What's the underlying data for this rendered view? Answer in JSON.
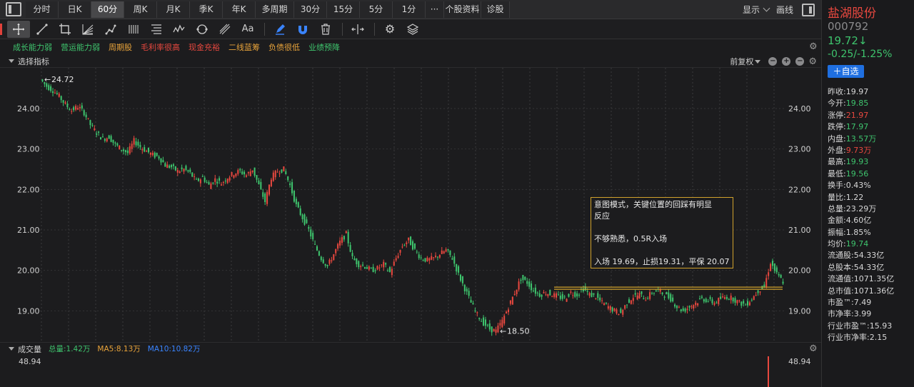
{
  "period_bar": {
    "tabs": [
      "分时",
      "日K",
      "60分",
      "周K",
      "月K",
      "季K",
      "年K",
      "多周期",
      "30分",
      "15分",
      "5分",
      "1分",
      "···",
      "个股资料",
      "诊股"
    ],
    "active_index": 2,
    "display_label": "显示",
    "draw_label": "画线"
  },
  "tags": [
    {
      "label": "成长能力弱",
      "color": "#3ec46d"
    },
    {
      "label": "营运能力弱",
      "color": "#3ec46d"
    },
    {
      "label": "周期股",
      "color": "#e8a33a"
    },
    {
      "label": "毛利率很高",
      "color": "#e8483f"
    },
    {
      "label": "现金充裕",
      "color": "#e8483f"
    },
    {
      "label": "二线蓝筹",
      "color": "#e8a33a"
    },
    {
      "label": "负债很低",
      "color": "#e8a33a"
    },
    {
      "label": "业绩预降",
      "color": "#3ec46d"
    }
  ],
  "main_chart": {
    "indicator_label": "选择指标",
    "adjust_label": "前复权",
    "y_ticks": [
      "24.00",
      "23.00",
      "22.00",
      "21.00",
      "20.00",
      "19.00"
    ],
    "high_label": "24.72",
    "low_label": "18.50",
    "support_level": 19.56
  },
  "note": {
    "lines": [
      "意图模式，关键位置的回踩有明显",
      "反应",
      "",
      "不够熟悉，0.5R入场",
      "",
      "入场 19.69，止损19.31，平保 20.07"
    ]
  },
  "volume": {
    "title": "成交量",
    "total": "总量:1.42万",
    "ma5": "MA5:8.13万",
    "ma10": "MA10:10.82万",
    "axis_label": "48.94"
  },
  "stock": {
    "name": "盐湖股份",
    "code": "000792",
    "price": "19.72↓",
    "change": "-0.25/-1.25%",
    "watch_label": "＋自选"
  },
  "quote": [
    {
      "label": "昨收:",
      "value": "19.97",
      "tone": ""
    },
    {
      "label": "今开:",
      "value": "19.85",
      "tone": "green"
    },
    {
      "label": "涨停:",
      "value": "21.97",
      "tone": "red"
    },
    {
      "label": "跌停:",
      "value": "17.97",
      "tone": "green"
    },
    {
      "label": "内盘:",
      "value": "13.57万",
      "tone": "green"
    },
    {
      "label": "外盘:",
      "value": "9.73万",
      "tone": "red"
    },
    {
      "label": "最高:",
      "value": "19.93",
      "tone": "green"
    },
    {
      "label": "最低:",
      "value": "19.56",
      "tone": "green"
    },
    {
      "label": "换手:",
      "value": "0.43%",
      "tone": ""
    },
    {
      "label": "量比:",
      "value": "1.22",
      "tone": ""
    },
    {
      "label": "总量:",
      "value": "23.29万",
      "tone": ""
    },
    {
      "label": "金额:",
      "value": "4.60亿",
      "tone": ""
    },
    {
      "label": "振幅:",
      "value": "1.85%",
      "tone": ""
    },
    {
      "label": "均价:",
      "value": "19.74",
      "tone": "green"
    },
    {
      "label": "流通股:",
      "value": "54.33亿",
      "tone": ""
    },
    {
      "label": "总股本:",
      "value": "54.33亿",
      "tone": ""
    },
    {
      "label": "流通值:",
      "value": "1071.35亿",
      "tone": ""
    },
    {
      "label": "总市值:",
      "value": "1071.36亿",
      "tone": ""
    },
    {
      "label": "市盈™:",
      "value": "7.49",
      "tone": ""
    },
    {
      "label": "市净率:",
      "value": "3.99",
      "tone": ""
    },
    {
      "label": "行业市盈™:",
      "value": "15.93",
      "tone": ""
    },
    {
      "label": "行业市净率:",
      "value": "2.15",
      "tone": ""
    }
  ],
  "chart_data": {
    "type": "candlestick",
    "price_range": [
      18.3,
      24.9
    ],
    "path": [
      24.72,
      24.55,
      24.45,
      24.3,
      24.1,
      23.95,
      24.05,
      23.9,
      23.6,
      23.4,
      23.25,
      23.3,
      23.1,
      23.0,
      22.9,
      23.2,
      23.05,
      22.95,
      22.85,
      22.8,
      22.6,
      22.55,
      22.45,
      22.5,
      22.4,
      22.2,
      22.3,
      22.1,
      22.25,
      22.15,
      22.3,
      22.4,
      22.45,
      22.35,
      22.5,
      22.1,
      21.7,
      22.3,
      22.45,
      22.5,
      22.1,
      21.6,
      21.3,
      21.0,
      20.6,
      20.3,
      20.1,
      20.4,
      20.7,
      20.9,
      20.3,
      20.15,
      20.1,
      20.0,
      20.05,
      20.15,
      19.95,
      20.3,
      20.6,
      20.75,
      20.5,
      20.3,
      20.25,
      20.3,
      20.4,
      20.5,
      20.3,
      19.9,
      19.55,
      19.2,
      18.9,
      18.7,
      18.55,
      18.5,
      18.75,
      19.1,
      19.45,
      19.8,
      19.7,
      19.5,
      19.4,
      19.45,
      19.4,
      19.35,
      19.3,
      19.45,
      19.4,
      19.55,
      19.4,
      19.35,
      19.2,
      19.1,
      19.0,
      18.95,
      19.2,
      19.35,
      19.4,
      19.3,
      19.45,
      19.5,
      19.4,
      19.3,
      19.1,
      19.0,
      19.1,
      19.2,
      19.3,
      19.25,
      19.2,
      19.3,
      19.35,
      19.3,
      19.2,
      19.15,
      19.3,
      19.5,
      19.6,
      20.2,
      19.9,
      19.72
    ]
  }
}
